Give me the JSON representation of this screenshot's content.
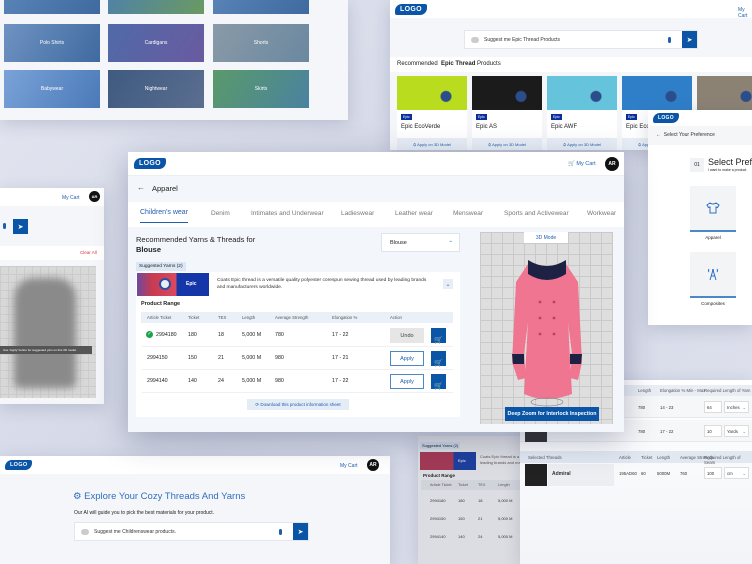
{
  "colors": {
    "brand": "#0a55a6",
    "background": "#dde0ec",
    "success": "#1aa34a",
    "danger": "#d9363e"
  },
  "common": {
    "logo": "LOGO",
    "cart_label": "My Cart",
    "avatar": "AR"
  },
  "categories": {
    "tiles": [
      "Polo Shirts",
      "Cardigans",
      "Shorts",
      "Babywear",
      "Nightwear",
      "Skirts"
    ]
  },
  "thread_panel": {
    "search_value": "Suggest me Epic Thread Products",
    "recommended_prefix": "Recommended",
    "recommended_bold": "Epic Thread",
    "recommended_suffix": "Products",
    "cards": [
      {
        "badge": "Epic",
        "name": "Epic EcoVerde",
        "action": "Apply on 3D Model",
        "color": "#b9dc1f"
      },
      {
        "badge": "Epic",
        "name": "Epic AS",
        "action": "Apply on 3D Model",
        "color": "#1b1b1b"
      },
      {
        "badge": "Epic",
        "name": "Epic AWF",
        "action": "Apply on 3D Model",
        "color": "#66c3dc"
      },
      {
        "badge": "Epic",
        "name": "Epic Eco",
        "action": "Apply on 3D Model",
        "color": "#2f7fc8"
      },
      {
        "badge": "",
        "name": "",
        "action": "",
        "color": "#8c8274"
      }
    ]
  },
  "preference": {
    "back": "Select Your Preference",
    "step": "01",
    "title": "Select Prefer",
    "subtitle": "I want to make a product",
    "options": [
      {
        "label": "Apparel",
        "icon": "tshirt-icon"
      },
      {
        "label": "Composites",
        "icon": "tower-icon"
      }
    ]
  },
  "coat_panel": {
    "clear_all": "Clear All",
    "hint": "Use 'Apply' button for suggested yarn on this 3D model."
  },
  "main": {
    "breadcrumb": "Apparel",
    "tabs": [
      "Children's wear",
      "Denim",
      "Intimates and Underwear",
      "Ladieswear",
      "Leather wear",
      "Menswear",
      "Sports and Activewear",
      "Workwear"
    ],
    "active_tab": 0,
    "title_line1": "Recommended Yarns & Threads for",
    "title_line2": "Blouse",
    "dropdown_value": "Blouse",
    "suggested_label": "Suggested Yarns (2)",
    "yarn_badge": "Epic",
    "yarn_description": "Coats Epic thread is a versatile quality polyester corespun sewing thread used by leading brands and manufacturers worldwide.",
    "product_range": "Product Range",
    "columns": [
      "Article Ticket",
      "Ticket",
      "TEX",
      "Length",
      "Average Strength",
      "Elongation %",
      "Action"
    ],
    "rows": [
      {
        "article": "2994180",
        "ticket": "180",
        "tex": "18",
        "length": "5,000 M",
        "strength": "780",
        "elongation": "17 - 22",
        "action": "Undo",
        "applied": true
      },
      {
        "article": "2994150",
        "ticket": "150",
        "tex": "21",
        "length": "5,000 M",
        "strength": "980",
        "elongation": "17 - 21",
        "action": "Apply",
        "applied": false
      },
      {
        "article": "2994140",
        "ticket": "140",
        "tex": "24",
        "length": "5,000 M",
        "strength": "980",
        "elongation": "17 - 22",
        "action": "Apply",
        "applied": false
      }
    ],
    "download": "Download this product information sheet",
    "mode_label": "3D Mode",
    "deep_zoom": "Deep Zoom for Interlock Inspection",
    "rotate_label": "3D"
  },
  "explore": {
    "title": "Explore Your Cozy Threads And Yarns",
    "subtitle": "Our AI will guide you to pick the best materials for your product.",
    "search_value": "Suggest me Childrenswear products."
  },
  "mini_yarn": {
    "suggested_label": "Suggested Yarns (2)",
    "badge": "Epic",
    "desc": "Coats Epic thread is a v leading brands and ma",
    "product_range": "Product Range",
    "columns": [
      "Article Ticket",
      "Ticket",
      "TEX",
      "Length"
    ],
    "rows": [
      [
        "2994180",
        "180",
        "18",
        "5,000 M"
      ],
      [
        "2994150",
        "150",
        "21",
        "5,000 M"
      ],
      [
        "2994140",
        "140",
        "24",
        "5,000 M"
      ]
    ]
  },
  "selection_table": {
    "columns": [
      "Length",
      "Elongation % Min - Max",
      "Required Length of Yarn"
    ],
    "rows": [
      {
        "length": "780",
        "elongation": "14 - 23",
        "qty": "64",
        "unit": "Inches"
      },
      {
        "length": "780",
        "elongation": "17 - 22",
        "qty": "10",
        "unit": "Yards"
      }
    ],
    "threads_header": [
      "Selected Threads",
      "Article",
      "Ticket",
      "Length",
      "Average Strength",
      "Required Length of Seam"
    ],
    "thread_row": {
      "name": "Admiral",
      "article": "195AD60",
      "ticket": "60",
      "length": "5000M",
      "strength": "760",
      "qty": "100",
      "unit": "cm"
    }
  }
}
